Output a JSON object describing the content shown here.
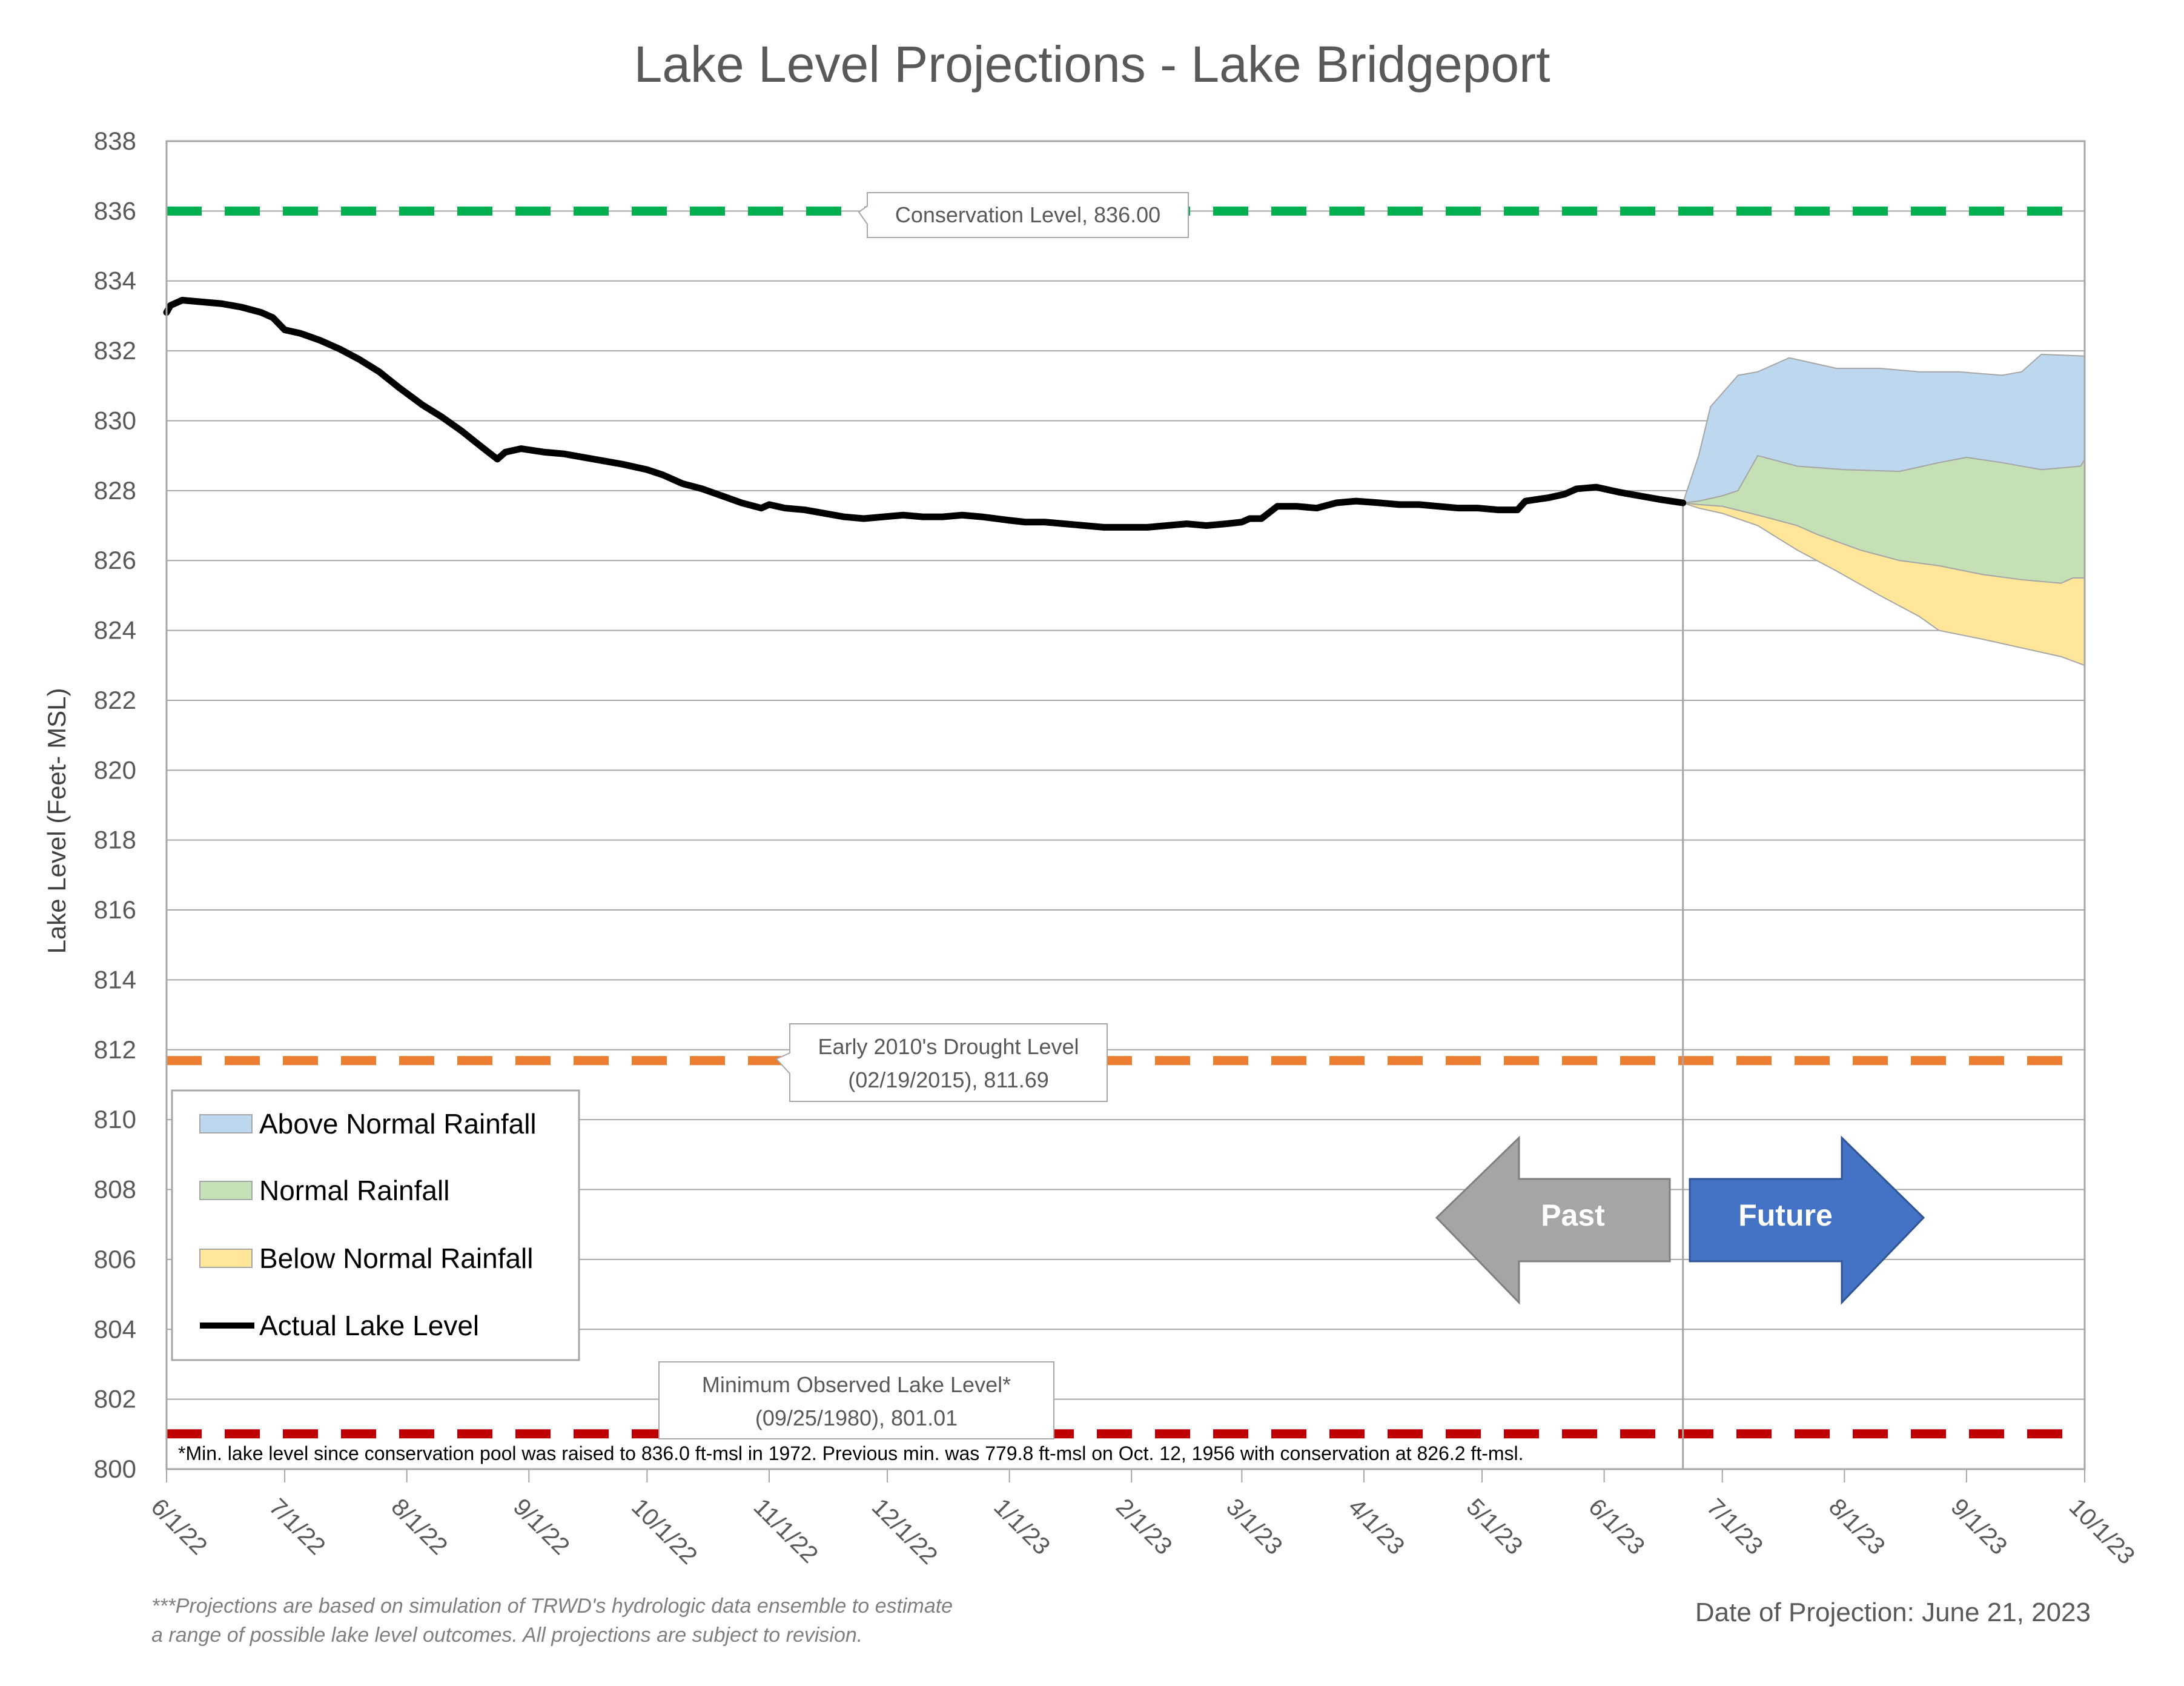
{
  "chart_data": {
    "type": "area",
    "title": "Lake Level Projections - Lake Bridgeport",
    "ylabel": "Lake Level (Feet- MSL)",
    "xlabel": "",
    "ylim": [
      800,
      838
    ],
    "y_ticks": [
      "800",
      "802",
      "804",
      "806",
      "808",
      "810",
      "812",
      "814",
      "816",
      "818",
      "820",
      "822",
      "824",
      "826",
      "828",
      "830",
      "832",
      "834",
      "836",
      "838"
    ],
    "x_range": [
      "2022-06-01",
      "2023-10-01"
    ],
    "x_ticks": [
      {
        "date": "2022-06-01",
        "label": "6/1/22"
      },
      {
        "date": "2022-07-01",
        "label": "7/1/22"
      },
      {
        "date": "2022-08-01",
        "label": "8/1/22"
      },
      {
        "date": "2022-09-01",
        "label": "9/1/22"
      },
      {
        "date": "2022-10-01",
        "label": "10/1/22"
      },
      {
        "date": "2022-11-01",
        "label": "11/1/22"
      },
      {
        "date": "2022-12-01",
        "label": "12/1/22"
      },
      {
        "date": "2023-01-01",
        "label": "1/1/23"
      },
      {
        "date": "2023-02-01",
        "label": "2/1/23"
      },
      {
        "date": "2023-03-01",
        "label": "3/1/23"
      },
      {
        "date": "2023-04-01",
        "label": "4/1/23"
      },
      {
        "date": "2023-05-01",
        "label": "5/1/23"
      },
      {
        "date": "2023-06-01",
        "label": "6/1/23"
      },
      {
        "date": "2023-07-01",
        "label": "7/1/23"
      },
      {
        "date": "2023-08-01",
        "label": "8/1/23"
      },
      {
        "date": "2023-09-01",
        "label": "9/1/23"
      },
      {
        "date": "2023-10-01",
        "label": "10/1/23"
      }
    ],
    "grid": true,
    "legend_position": "bottom-left",
    "legend": [
      {
        "label": "Above Normal Rainfall",
        "color": "#bdd7ee",
        "kind": "area"
      },
      {
        "label": "Normal Rainfall",
        "color": "#c5e0b4",
        "kind": "area"
      },
      {
        "label": "Below Normal Rainfall",
        "color": "#ffe699",
        "kind": "area"
      },
      {
        "label": "Actual Lake Level",
        "color": "#000000",
        "kind": "line"
      }
    ],
    "reference_lines": [
      {
        "value": 836.0,
        "color": "#00b050",
        "label": "Conservation Level, 836.00"
      },
      {
        "value": 811.69,
        "color": "#ed7d31",
        "label_line1": "Early 2010's Drought Level",
        "label_line2": "(02/19/2015), 811.69"
      },
      {
        "value": 801.01,
        "color": "#c00000",
        "label_line1": "Minimum Observed Lake Level*",
        "label_line2": "(09/25/1980), 801.01"
      }
    ],
    "actual_series": {
      "name": "Actual Lake Level",
      "color": "#000000",
      "points": [
        [
          "2022-06-01",
          833.1
        ],
        [
          "2022-06-02",
          833.3
        ],
        [
          "2022-06-05",
          833.45
        ],
        [
          "2022-06-10",
          833.4
        ],
        [
          "2022-06-15",
          833.35
        ],
        [
          "2022-06-20",
          833.25
        ],
        [
          "2022-06-25",
          833.1
        ],
        [
          "2022-06-28",
          832.95
        ],
        [
          "2022-07-01",
          832.6
        ],
        [
          "2022-07-05",
          832.5
        ],
        [
          "2022-07-10",
          832.3
        ],
        [
          "2022-07-15",
          832.05
        ],
        [
          "2022-07-20",
          831.75
        ],
        [
          "2022-07-25",
          831.4
        ],
        [
          "2022-07-30",
          830.95
        ],
        [
          "2022-08-05",
          830.45
        ],
        [
          "2022-08-10",
          830.1
        ],
        [
          "2022-08-15",
          829.7
        ],
        [
          "2022-08-20",
          829.25
        ],
        [
          "2022-08-24",
          828.9
        ],
        [
          "2022-08-25",
          829.0
        ],
        [
          "2022-08-26",
          829.1
        ],
        [
          "2022-08-30",
          829.2
        ],
        [
          "2022-09-05",
          829.1
        ],
        [
          "2022-09-10",
          829.05
        ],
        [
          "2022-09-15",
          828.95
        ],
        [
          "2022-09-20",
          828.85
        ],
        [
          "2022-09-25",
          828.75
        ],
        [
          "2022-10-01",
          828.6
        ],
        [
          "2022-10-05",
          828.45
        ],
        [
          "2022-10-10",
          828.2
        ],
        [
          "2022-10-15",
          828.05
        ],
        [
          "2022-10-20",
          827.85
        ],
        [
          "2022-10-25",
          827.65
        ],
        [
          "2022-10-30",
          827.5
        ],
        [
          "2022-11-01",
          827.6
        ],
        [
          "2022-11-05",
          827.5
        ],
        [
          "2022-11-10",
          827.45
        ],
        [
          "2022-11-15",
          827.35
        ],
        [
          "2022-11-20",
          827.25
        ],
        [
          "2022-11-25",
          827.2
        ],
        [
          "2022-11-30",
          827.25
        ],
        [
          "2022-12-05",
          827.3
        ],
        [
          "2022-12-10",
          827.25
        ],
        [
          "2022-12-15",
          827.25
        ],
        [
          "2022-12-20",
          827.3
        ],
        [
          "2022-12-25",
          827.25
        ],
        [
          "2023-01-01",
          827.15
        ],
        [
          "2023-01-05",
          827.1
        ],
        [
          "2023-01-10",
          827.1
        ],
        [
          "2023-01-15",
          827.05
        ],
        [
          "2023-01-20",
          827.0
        ],
        [
          "2023-01-25",
          826.95
        ],
        [
          "2023-01-30",
          826.95
        ],
        [
          "2023-02-05",
          826.95
        ],
        [
          "2023-02-10",
          827.0
        ],
        [
          "2023-02-15",
          827.05
        ],
        [
          "2023-02-20",
          827.0
        ],
        [
          "2023-02-25",
          827.05
        ],
        [
          "2023-03-01",
          827.1
        ],
        [
          "2023-03-03",
          827.2
        ],
        [
          "2023-03-06",
          827.2
        ],
        [
          "2023-03-10",
          827.55
        ],
        [
          "2023-03-15",
          827.55
        ],
        [
          "2023-03-20",
          827.5
        ],
        [
          "2023-03-25",
          827.65
        ],
        [
          "2023-03-30",
          827.7
        ],
        [
          "2023-04-05",
          827.65
        ],
        [
          "2023-04-10",
          827.6
        ],
        [
          "2023-04-15",
          827.6
        ],
        [
          "2023-04-20",
          827.55
        ],
        [
          "2023-04-25",
          827.5
        ],
        [
          "2023-04-30",
          827.5
        ],
        [
          "2023-05-05",
          827.45
        ],
        [
          "2023-05-10",
          827.45
        ],
        [
          "2023-05-12",
          827.7
        ],
        [
          "2023-05-18",
          827.8
        ],
        [
          "2023-05-22",
          827.9
        ],
        [
          "2023-05-25",
          828.05
        ],
        [
          "2023-05-30",
          828.1
        ],
        [
          "2023-06-01",
          828.05
        ],
        [
          "2023-06-05",
          827.95
        ],
        [
          "2023-06-10",
          827.85
        ],
        [
          "2023-06-15",
          827.75
        ],
        [
          "2023-06-21",
          827.65
        ]
      ]
    },
    "projection_bands": [
      {
        "name": "Above Normal Rainfall",
        "color": "#bdd7ee",
        "upper": [
          [
            "2023-06-21",
            827.65
          ],
          [
            "2023-06-25",
            829.0
          ],
          [
            "2023-06-28",
            830.4
          ],
          [
            "2023-07-05",
            831.3
          ],
          [
            "2023-07-10",
            831.4
          ],
          [
            "2023-07-18",
            831.8
          ],
          [
            "2023-07-30",
            831.5
          ],
          [
            "2023-08-10",
            831.5
          ],
          [
            "2023-08-20",
            831.4
          ],
          [
            "2023-08-30",
            831.4
          ],
          [
            "2023-09-10",
            831.3
          ],
          [
            "2023-09-15",
            831.4
          ],
          [
            "2023-09-20",
            831.9
          ],
          [
            "2023-10-01",
            831.85
          ]
        ],
        "lower": [
          [
            "2023-06-21",
            827.65
          ],
          [
            "2023-06-25",
            827.7
          ],
          [
            "2023-07-01",
            827.85
          ],
          [
            "2023-07-05",
            828.0
          ],
          [
            "2023-07-10",
            829.0
          ],
          [
            "2023-07-20",
            828.7
          ],
          [
            "2023-08-01",
            828.6
          ],
          [
            "2023-08-15",
            828.55
          ],
          [
            "2023-08-25",
            828.8
          ],
          [
            "2023-09-01",
            828.95
          ],
          [
            "2023-09-10",
            828.8
          ],
          [
            "2023-09-20",
            828.6
          ],
          [
            "2023-09-30",
            828.7
          ],
          [
            "2023-10-01",
            828.9
          ]
        ]
      },
      {
        "name": "Normal Rainfall",
        "color": "#c5e0b4",
        "upper": [
          [
            "2023-06-21",
            827.65
          ],
          [
            "2023-06-25",
            827.7
          ],
          [
            "2023-07-01",
            827.85
          ],
          [
            "2023-07-05",
            828.0
          ],
          [
            "2023-07-10",
            829.0
          ],
          [
            "2023-07-20",
            828.7
          ],
          [
            "2023-08-01",
            828.6
          ],
          [
            "2023-08-15",
            828.55
          ],
          [
            "2023-08-25",
            828.8
          ],
          [
            "2023-09-01",
            828.95
          ],
          [
            "2023-09-10",
            828.8
          ],
          [
            "2023-09-20",
            828.6
          ],
          [
            "2023-09-30",
            828.7
          ],
          [
            "2023-10-01",
            828.9
          ]
        ],
        "lower": [
          [
            "2023-06-21",
            827.65
          ],
          [
            "2023-06-25",
            827.6
          ],
          [
            "2023-07-01",
            827.55
          ],
          [
            "2023-07-10",
            827.3
          ],
          [
            "2023-07-20",
            827.0
          ],
          [
            "2023-07-25",
            826.75
          ],
          [
            "2023-08-05",
            826.3
          ],
          [
            "2023-08-15",
            826.0
          ],
          [
            "2023-08-25",
            825.85
          ],
          [
            "2023-09-05",
            825.6
          ],
          [
            "2023-09-15",
            825.45
          ],
          [
            "2023-09-25",
            825.35
          ],
          [
            "2023-09-28",
            825.5
          ],
          [
            "2023-10-01",
            825.5
          ]
        ]
      },
      {
        "name": "Below Normal Rainfall",
        "color": "#ffe699",
        "upper": [
          [
            "2023-06-21",
            827.65
          ],
          [
            "2023-06-25",
            827.6
          ],
          [
            "2023-07-01",
            827.55
          ],
          [
            "2023-07-10",
            827.3
          ],
          [
            "2023-07-20",
            827.0
          ],
          [
            "2023-07-25",
            826.75
          ],
          [
            "2023-08-05",
            826.3
          ],
          [
            "2023-08-15",
            826.0
          ],
          [
            "2023-08-25",
            825.85
          ],
          [
            "2023-09-05",
            825.6
          ],
          [
            "2023-09-15",
            825.45
          ],
          [
            "2023-09-25",
            825.35
          ],
          [
            "2023-09-28",
            825.5
          ],
          [
            "2023-10-01",
            825.5
          ]
        ],
        "lower": [
          [
            "2023-06-21",
            827.65
          ],
          [
            "2023-06-25",
            827.5
          ],
          [
            "2023-07-01",
            827.35
          ],
          [
            "2023-07-10",
            827.0
          ],
          [
            "2023-07-20",
            826.3
          ],
          [
            "2023-07-30",
            825.7
          ],
          [
            "2023-08-10",
            825.0
          ],
          [
            "2023-08-20",
            824.4
          ],
          [
            "2023-08-25",
            824.0
          ],
          [
            "2023-09-05",
            823.75
          ],
          [
            "2023-09-15",
            823.5
          ],
          [
            "2023-09-25",
            823.25
          ],
          [
            "2023-10-01",
            823.0
          ]
        ]
      }
    ],
    "projection_date": "2023-06-21",
    "arrows": {
      "past_label": "Past",
      "future_label": "Future",
      "past_color": "#a5a5a5",
      "future_color": "#4472c4"
    },
    "footnote": "*Min. lake level since conservation pool was raised to 836.0 ft-msl in 1972.  Previous min. was 779.8 ft-msl on Oct. 12, 1956 with conservation at 826.2 ft-msl.",
    "note_line1": "***Projections are based on simulation of TRWD's hydrologic data ensemble to estimate",
    "note_line2": "a range of possible lake level outcomes.  All projections are subject to revision.",
    "projection_date_text": "Date of Projection: June 21, 2023"
  }
}
